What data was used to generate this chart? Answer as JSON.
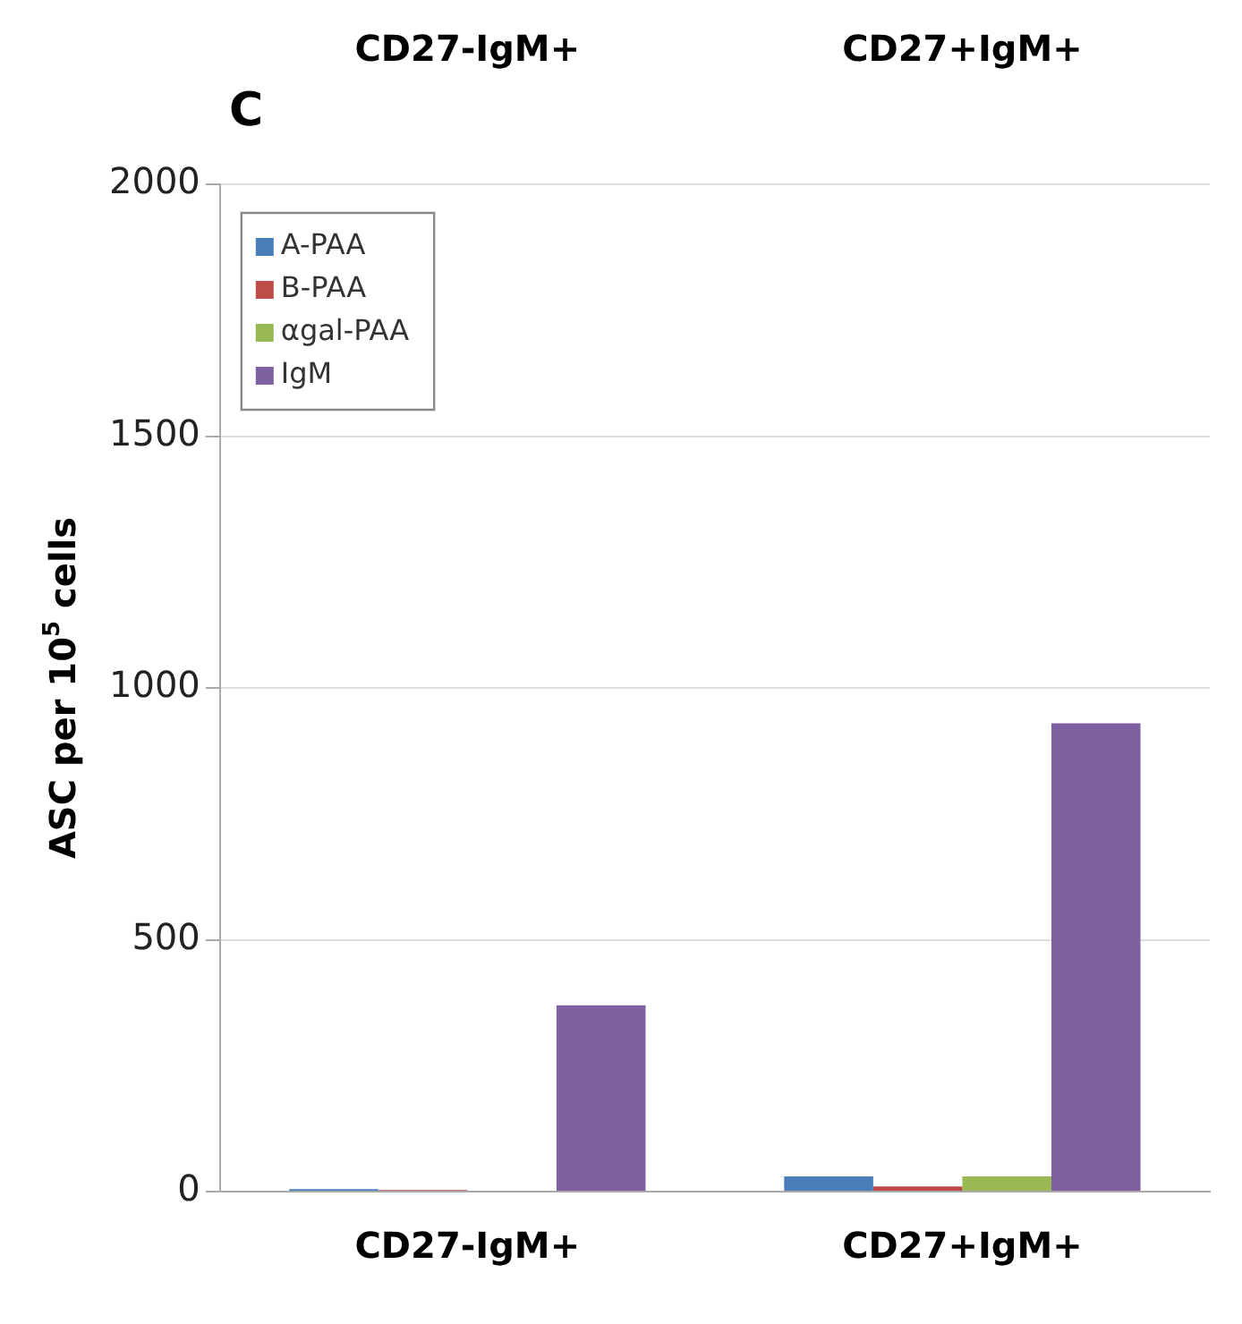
{
  "chart_data": {
    "type": "bar",
    "ylabel": "ASC per 10$^{5}$ cells",
    "annotations": [
      "CD27-IgM+",
      "CD27+IgM+",
      "C"
    ],
    "categories": [
      "CD27-IgM+",
      "CD27+IgM+"
    ],
    "series": [
      {
        "name": "A-PAA",
        "color": "#4a7ebb",
        "values": [
          5,
          30
        ]
      },
      {
        "name": "B-PAA",
        "color": "#be4b48",
        "values": [
          3,
          10
        ]
      },
      {
        "name": "αgal-PAA",
        "color": "#98b954",
        "values": [
          0,
          30
        ]
      },
      {
        "name": "IgM",
        "color": "#7f60a0",
        "values": [
          370,
          930
        ]
      }
    ],
    "ylim": [
      0,
      2000
    ],
    "yticks": [
      0,
      500,
      1000,
      1500,
      2000
    ],
    "grid": "y",
    "legend": "top left"
  }
}
